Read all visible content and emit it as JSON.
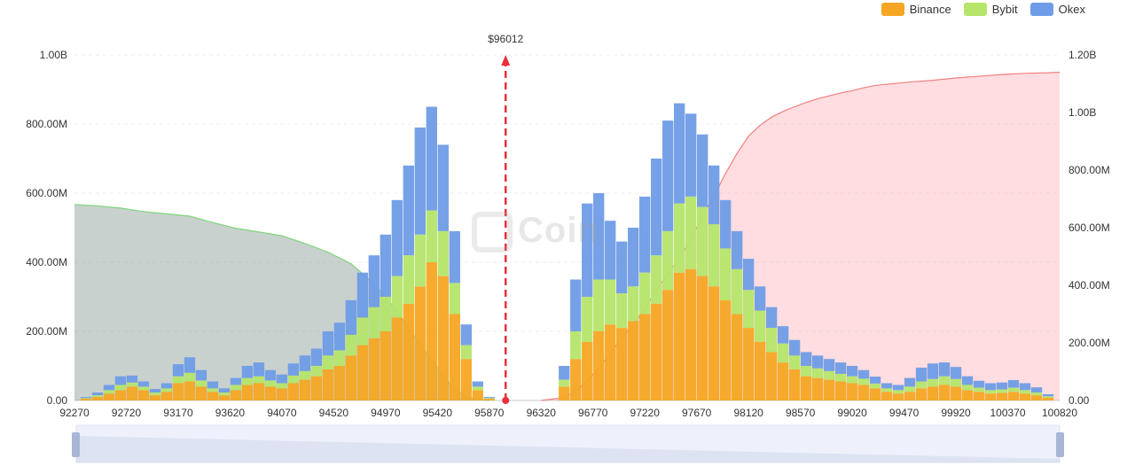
{
  "legend": {
    "items": [
      {
        "label": "Binance",
        "color": "#f5a623"
      },
      {
        "label": "Bybit",
        "color": "#b5e56a"
      },
      {
        "label": "Okex",
        "color": "#6f9ce6"
      }
    ]
  },
  "watermark": "Coin",
  "chart_data": {
    "type": "bar",
    "title": "",
    "current_price_label": "$96012",
    "current_price": 96012,
    "x_ticks": [
      "92270",
      "92720",
      "93170",
      "93620",
      "94070",
      "94520",
      "94970",
      "95420",
      "95870",
      "96320",
      "96770",
      "97220",
      "97670",
      "98120",
      "98570",
      "99020",
      "99470",
      "99920",
      "100370",
      "100820"
    ],
    "xlim": [
      92270,
      100820
    ],
    "y_left_ticks": [
      "0.00",
      "200.00M",
      "400.00M",
      "600.00M",
      "800.00M",
      "1.00B"
    ],
    "ylim_left": [
      0,
      1000000000
    ],
    "y_right_ticks": [
      "0.00",
      "200.00M",
      "400.00M",
      "600.00M",
      "800.00M",
      "1.00B",
      "1.20B"
    ],
    "ylim_right": [
      0,
      1200000000
    ],
    "series": [
      {
        "name": "Binance",
        "color": "#f5a623",
        "x": [
          92370,
          92470,
          92570,
          92670,
          92770,
          92870,
          92970,
          93070,
          93170,
          93270,
          93370,
          93470,
          93570,
          93670,
          93770,
          93870,
          93970,
          94070,
          94170,
          94270,
          94370,
          94470,
          94570,
          94670,
          94770,
          94870,
          94970,
          95070,
          95170,
          95270,
          95370,
          95470,
          95570,
          95670,
          95770,
          95870,
          96520,
          96620,
          96720,
          96820,
          96920,
          97020,
          97120,
          97220,
          97320,
          97420,
          97520,
          97620,
          97720,
          97820,
          97920,
          98020,
          98120,
          98220,
          98320,
          98420,
          98520,
          98620,
          98720,
          98820,
          98920,
          99020,
          99120,
          99220,
          99320,
          99420,
          99520,
          99620,
          99720,
          99820,
          99920,
          100020,
          100120,
          100220,
          100320,
          100420,
          100520,
          100620,
          100720
        ],
        "values": [
          5000000,
          10000000,
          20000000,
          30000000,
          40000000,
          30000000,
          15000000,
          25000000,
          50000000,
          55000000,
          40000000,
          25000000,
          15000000,
          30000000,
          45000000,
          50000000,
          40000000,
          35000000,
          50000000,
          60000000,
          70000000,
          90000000,
          100000000,
          130000000,
          160000000,
          180000000,
          200000000,
          240000000,
          280000000,
          330000000,
          400000000,
          360000000,
          250000000,
          120000000,
          30000000,
          5000000,
          40000000,
          120000000,
          170000000,
          200000000,
          220000000,
          210000000,
          230000000,
          250000000,
          280000000,
          320000000,
          370000000,
          380000000,
          360000000,
          330000000,
          290000000,
          250000000,
          210000000,
          170000000,
          140000000,
          110000000,
          90000000,
          70000000,
          65000000,
          60000000,
          55000000,
          50000000,
          45000000,
          35000000,
          25000000,
          20000000,
          25000000,
          35000000,
          40000000,
          45000000,
          40000000,
          30000000,
          25000000,
          20000000,
          22000000,
          25000000,
          20000000,
          15000000,
          8000000
        ]
      },
      {
        "name": "Bybit",
        "color": "#b5e56a",
        "x": [
          92370,
          92470,
          92570,
          92670,
          92770,
          92870,
          92970,
          93070,
          93170,
          93270,
          93370,
          93470,
          93570,
          93670,
          93770,
          93870,
          93970,
          94070,
          94170,
          94270,
          94370,
          94470,
          94570,
          94670,
          94770,
          94870,
          94970,
          95070,
          95170,
          95270,
          95370,
          95470,
          95570,
          95670,
          95770,
          95870,
          96520,
          96620,
          96720,
          96820,
          96920,
          97020,
          97120,
          97220,
          97320,
          97420,
          97520,
          97620,
          97720,
          97820,
          97920,
          98020,
          98120,
          98220,
          98320,
          98420,
          98520,
          98620,
          98720,
          98820,
          98920,
          99020,
          99120,
          99220,
          99320,
          99420,
          99520,
          99620,
          99720,
          99820,
          99920,
          100020,
          100120,
          100220,
          100320,
          100420,
          100520,
          100620,
          100720
        ],
        "values": [
          2000000,
          5000000,
          10000000,
          15000000,
          12000000,
          10000000,
          8000000,
          10000000,
          20000000,
          25000000,
          18000000,
          10000000,
          8000000,
          15000000,
          20000000,
          20000000,
          18000000,
          15000000,
          22000000,
          25000000,
          30000000,
          40000000,
          45000000,
          60000000,
          80000000,
          90000000,
          100000000,
          120000000,
          140000000,
          150000000,
          150000000,
          130000000,
          90000000,
          40000000,
          10000000,
          2000000,
          20000000,
          80000000,
          130000000,
          150000000,
          130000000,
          100000000,
          100000000,
          120000000,
          140000000,
          170000000,
          200000000,
          210000000,
          200000000,
          180000000,
          150000000,
          130000000,
          110000000,
          90000000,
          70000000,
          55000000,
          40000000,
          30000000,
          28000000,
          25000000,
          22000000,
          20000000,
          18000000,
          14000000,
          10000000,
          10000000,
          15000000,
          20000000,
          22000000,
          25000000,
          22000000,
          15000000,
          12000000,
          10000000,
          10000000,
          12000000,
          10000000,
          8000000,
          4000000
        ]
      },
      {
        "name": "Okex",
        "color": "#6f9ce6",
        "x": [
          92370,
          92470,
          92570,
          92670,
          92770,
          92870,
          92970,
          93070,
          93170,
          93270,
          93370,
          93470,
          93570,
          93670,
          93770,
          93870,
          93970,
          94070,
          94170,
          94270,
          94370,
          94470,
          94570,
          94670,
          94770,
          94870,
          94970,
          95070,
          95170,
          95270,
          95370,
          95470,
          95570,
          95670,
          95770,
          95870,
          96520,
          96620,
          96720,
          96820,
          96920,
          97020,
          97120,
          97220,
          97320,
          97420,
          97520,
          97620,
          97720,
          97820,
          97920,
          98020,
          98120,
          98220,
          98320,
          98420,
          98520,
          98620,
          98720,
          98820,
          98920,
          99020,
          99120,
          99220,
          99320,
          99420,
          99520,
          99620,
          99720,
          99820,
          99920,
          100020,
          100120,
          100220,
          100320,
          100420,
          100520,
          100620,
          100720
        ],
        "values": [
          3000000,
          8000000,
          15000000,
          25000000,
          20000000,
          15000000,
          10000000,
          15000000,
          35000000,
          45000000,
          30000000,
          20000000,
          12000000,
          20000000,
          35000000,
          40000000,
          30000000,
          25000000,
          35000000,
          45000000,
          50000000,
          70000000,
          80000000,
          100000000,
          130000000,
          150000000,
          180000000,
          220000000,
          260000000,
          310000000,
          300000000,
          250000000,
          150000000,
          60000000,
          15000000,
          3000000,
          40000000,
          150000000,
          270000000,
          250000000,
          170000000,
          150000000,
          170000000,
          220000000,
          280000000,
          320000000,
          290000000,
          240000000,
          210000000,
          170000000,
          140000000,
          110000000,
          90000000,
          70000000,
          60000000,
          50000000,
          45000000,
          40000000,
          37000000,
          35000000,
          33000000,
          30000000,
          25000000,
          20000000,
          15000000,
          15000000,
          25000000,
          40000000,
          45000000,
          40000000,
          35000000,
          25000000,
          20000000,
          20000000,
          20000000,
          22000000,
          20000000,
          15000000,
          6000000
        ]
      },
      {
        "name": "",
        "color": "#9fb0a8",
        "kind": "cumulative-short-area",
        "axis": "right",
        "x": [
          92270,
          92470,
          92670,
          92870,
          93070,
          93270,
          93470,
          93670,
          93870,
          94070,
          94270,
          94470,
          94670,
          94870,
          94970,
          95070,
          95170,
          95270,
          95370,
          95470,
          95570,
          95670,
          95770,
          95870
        ],
        "values": [
          680000000,
          676000000,
          668000000,
          656000000,
          648000000,
          640000000,
          618000000,
          598000000,
          585000000,
          572000000,
          545000000,
          515000000,
          475000000,
          405000000,
          360000000,
          310000000,
          250000000,
          195000000,
          140000000,
          85000000,
          40000000,
          14000000,
          3000000,
          0
        ]
      },
      {
        "name": "",
        "color": "#ffb5bd",
        "kind": "cumulative-long-area",
        "axis": "right",
        "x": [
          96320,
          96520,
          96620,
          96720,
          96820,
          96920,
          97020,
          97120,
          97220,
          97320,
          97420,
          97520,
          97620,
          97720,
          97820,
          97920,
          98020,
          98120,
          98220,
          98320,
          98420,
          98520,
          98620,
          98720,
          98820,
          98920,
          99020,
          99120,
          99220,
          99320,
          99520,
          99720,
          99920,
          100120,
          100320,
          100520,
          100720,
          100820
        ],
        "values": [
          0,
          10000000,
          32000000,
          68000000,
          112000000,
          164000000,
          216000000,
          264000000,
          318000000,
          384000000,
          438000000,
          494000000,
          560000000,
          640000000,
          710000000,
          788000000,
          858000000,
          918000000,
          956000000,
          984000000,
          1004000000,
          1020000000,
          1035000000,
          1048000000,
          1058000000,
          1068000000,
          1076000000,
          1086000000,
          1094000000,
          1098000000,
          1106000000,
          1112000000,
          1120000000,
          1126000000,
          1132000000,
          1136000000,
          1138000000,
          1140000000
        ]
      }
    ],
    "grid": true,
    "legend_position": "top-right"
  }
}
